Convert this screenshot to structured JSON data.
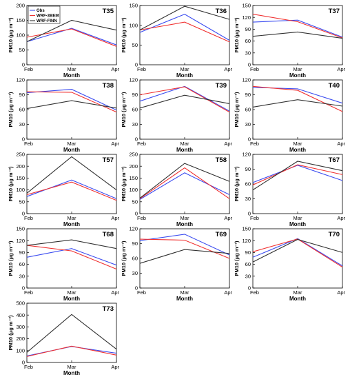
{
  "colors": {
    "Obs": "#3b4cf0",
    "WRF-3BEM": "#f03030",
    "WRF-FINN": "#303030"
  },
  "legend": [
    {
      "label": "Obs",
      "color": "#3b4cf0"
    },
    {
      "label": "WRF-3BEM",
      "color": "#f03030"
    },
    {
      "label": "WRF-FINN",
      "color": "#303030"
    }
  ],
  "chart_data": [
    {
      "type": "line",
      "title": "T35",
      "xlabel": "Month",
      "ylabel": "PM10 (μg m⁻³)",
      "categories": [
        "Feb",
        "Mar",
        "Apr"
      ],
      "ylim": [
        0,
        200
      ],
      "yticks": [
        0,
        50,
        100,
        150,
        200
      ],
      "series": [
        {
          "name": "Obs",
          "values": [
            78,
            123,
            67
          ]
        },
        {
          "name": "WRF-3BEM",
          "values": [
            93,
            121,
            62
          ]
        },
        {
          "name": "WRF-FINN",
          "values": [
            78,
            150,
            117
          ]
        }
      ]
    },
    {
      "type": "line",
      "title": "T36",
      "xlabel": "Month",
      "ylabel": "PM10 (μg m⁻³)",
      "categories": [
        "Feb",
        "Mar",
        "Apr"
      ],
      "ylim": [
        0,
        150
      ],
      "yticks": [
        0,
        50,
        100,
        150
      ],
      "series": [
        {
          "name": "Obs",
          "values": [
            82,
            128,
            62
          ]
        },
        {
          "name": "WRF-3BEM",
          "values": [
            88,
            108,
            58
          ]
        },
        {
          "name": "WRF-FINN",
          "values": [
            88,
            148,
            115
          ]
        }
      ]
    },
    {
      "type": "line",
      "title": "T37",
      "xlabel": "Month",
      "ylabel": "PM10 (μg m⁻³)",
      "categories": [
        "Feb",
        "Mar",
        "Apr"
      ],
      "ylim": [
        0,
        150
      ],
      "yticks": [
        0,
        30,
        60,
        90,
        120,
        150
      ],
      "series": [
        {
          "name": "Obs",
          "values": [
            108,
            113,
            70
          ]
        },
        {
          "name": "WRF-3BEM",
          "values": [
            128,
            109,
            68
          ]
        },
        {
          "name": "WRF-FINN",
          "values": [
            72,
            83,
            67
          ]
        }
      ]
    },
    {
      "type": "line",
      "title": "T38",
      "xlabel": "Month",
      "ylabel": "PM10 (μg m⁻³)",
      "categories": [
        "Feb",
        "Mar",
        "Apr"
      ],
      "ylim": [
        0,
        120
      ],
      "yticks": [
        0,
        30,
        60,
        90,
        120
      ],
      "series": [
        {
          "name": "Obs",
          "values": [
            94,
            101,
            59
          ]
        },
        {
          "name": "WRF-3BEM",
          "values": [
            96,
            95,
            55
          ]
        },
        {
          "name": "WRF-FINN",
          "values": [
            62,
            78,
            63
          ]
        }
      ]
    },
    {
      "type": "line",
      "title": "T39",
      "xlabel": "Month",
      "ylabel": "PM10 (μg m⁻³)",
      "categories": [
        "Feb",
        "Mar",
        "Apr"
      ],
      "ylim": [
        0,
        120
      ],
      "yticks": [
        0,
        30,
        60,
        90,
        120
      ],
      "series": [
        {
          "name": "Obs",
          "values": [
            77,
            107,
            57
          ]
        },
        {
          "name": "WRF-3BEM",
          "values": [
            90,
            106,
            55
          ]
        },
        {
          "name": "WRF-FINN",
          "values": [
            63,
            89,
            72
          ]
        }
      ]
    },
    {
      "type": "line",
      "title": "T40",
      "xlabel": "Month",
      "ylabel": "PM10 (μg m⁻³)",
      "categories": [
        "Feb",
        "Mar",
        "Apr"
      ],
      "ylim": [
        0,
        120
      ],
      "yticks": [
        0,
        30,
        60,
        90,
        120
      ],
      "series": [
        {
          "name": "Obs",
          "values": [
            105,
            102,
            73
          ]
        },
        {
          "name": "WRF-3BEM",
          "values": [
            107,
            99,
            56
          ]
        },
        {
          "name": "WRF-FINN",
          "values": [
            65,
            80,
            67
          ]
        }
      ]
    },
    {
      "type": "line",
      "title": "T57",
      "xlabel": "Month",
      "ylabel": "PM10 (μg m⁻³)",
      "categories": [
        "Feb",
        "Mar",
        "Apr"
      ],
      "ylim": [
        0,
        250
      ],
      "yticks": [
        0,
        50,
        100,
        150,
        200,
        250
      ],
      "series": [
        {
          "name": "Obs",
          "values": [
            72,
            142,
            63
          ]
        },
        {
          "name": "WRF-3BEM",
          "values": [
            80,
            133,
            56
          ]
        },
        {
          "name": "WRF-FINN",
          "values": [
            86,
            240,
            100
          ]
        }
      ]
    },
    {
      "type": "line",
      "title": "T58",
      "xlabel": "Month",
      "ylabel": "PM10 (μg m⁻³)",
      "categories": [
        "Feb",
        "Mar",
        "Apr"
      ],
      "ylim": [
        0,
        250
      ],
      "yticks": [
        0,
        50,
        100,
        150,
        200,
        250
      ],
      "series": [
        {
          "name": "Obs",
          "values": [
            60,
            172,
            80
          ]
        },
        {
          "name": "WRF-3BEM",
          "values": [
            63,
            193,
            63
          ]
        },
        {
          "name": "WRF-FINN",
          "values": [
            65,
            212,
            136
          ]
        }
      ]
    },
    {
      "type": "line",
      "title": "T67",
      "xlabel": "Month",
      "ylabel": "PM10 (μg m⁻³)",
      "categories": [
        "Feb",
        "Mar",
        "Apr"
      ],
      "ylim": [
        0,
        120
      ],
      "yticks": [
        0,
        30,
        60,
        90,
        120
      ],
      "series": [
        {
          "name": "Obs",
          "values": [
            63,
            98,
            67
          ]
        },
        {
          "name": "WRF-3BEM",
          "values": [
            58,
            99,
            79
          ]
        },
        {
          "name": "WRF-FINN",
          "values": [
            48,
            106,
            87
          ]
        }
      ]
    },
    {
      "type": "line",
      "title": "T68",
      "xlabel": "Month",
      "ylabel": "PM10 (μg m⁻³)",
      "categories": [
        "Feb",
        "Mar",
        "Apr"
      ],
      "ylim": [
        0,
        150
      ],
      "yticks": [
        0,
        30,
        60,
        90,
        120,
        150
      ],
      "series": [
        {
          "name": "Obs",
          "values": [
            78,
            100,
            58
          ]
        },
        {
          "name": "WRF-3BEM",
          "values": [
            108,
            94,
            48
          ]
        },
        {
          "name": "WRF-FINN",
          "values": [
            108,
            122,
            100
          ]
        }
      ]
    },
    {
      "type": "line",
      "title": "T69",
      "xlabel": "Month",
      "ylabel": "PM10 (μg m⁻³)",
      "categories": [
        "Feb",
        "Mar",
        "Apr"
      ],
      "ylim": [
        0,
        120
      ],
      "yticks": [
        0,
        30,
        60,
        90,
        120
      ],
      "series": [
        {
          "name": "Obs",
          "values": [
            96,
            109,
            67
          ]
        },
        {
          "name": "WRF-3BEM",
          "values": [
            99,
            97,
            60
          ]
        },
        {
          "name": "WRF-FINN",
          "values": [
            50,
            78,
            70
          ]
        }
      ]
    },
    {
      "type": "line",
      "title": "T70",
      "xlabel": "Month",
      "ylabel": "PM10 (μg m⁻³)",
      "categories": [
        "Feb",
        "Mar",
        "Apr"
      ],
      "ylim": [
        0,
        150
      ],
      "yticks": [
        0,
        30,
        60,
        90,
        120,
        150
      ],
      "series": [
        {
          "name": "Obs",
          "values": [
            78,
            125,
            56
          ]
        },
        {
          "name": "WRF-3BEM",
          "values": [
            92,
            124,
            53
          ]
        },
        {
          "name": "WRF-FINN",
          "values": [
            66,
            123,
            90
          ]
        }
      ]
    },
    {
      "type": "line",
      "title": "T73",
      "xlabel": "Month",
      "ylabel": "PM10 (μg m⁻³)",
      "categories": [
        "Feb",
        "Mar",
        "Apr"
      ],
      "ylim": [
        0,
        500
      ],
      "yticks": [
        0,
        100,
        200,
        300,
        400,
        500
      ],
      "series": [
        {
          "name": "Obs",
          "values": [
            55,
            135,
            78
          ]
        },
        {
          "name": "WRF-3BEM",
          "values": [
            50,
            138,
            62
          ]
        },
        {
          "name": "WRF-FINN",
          "values": [
            85,
            405,
            112
          ]
        }
      ]
    }
  ]
}
